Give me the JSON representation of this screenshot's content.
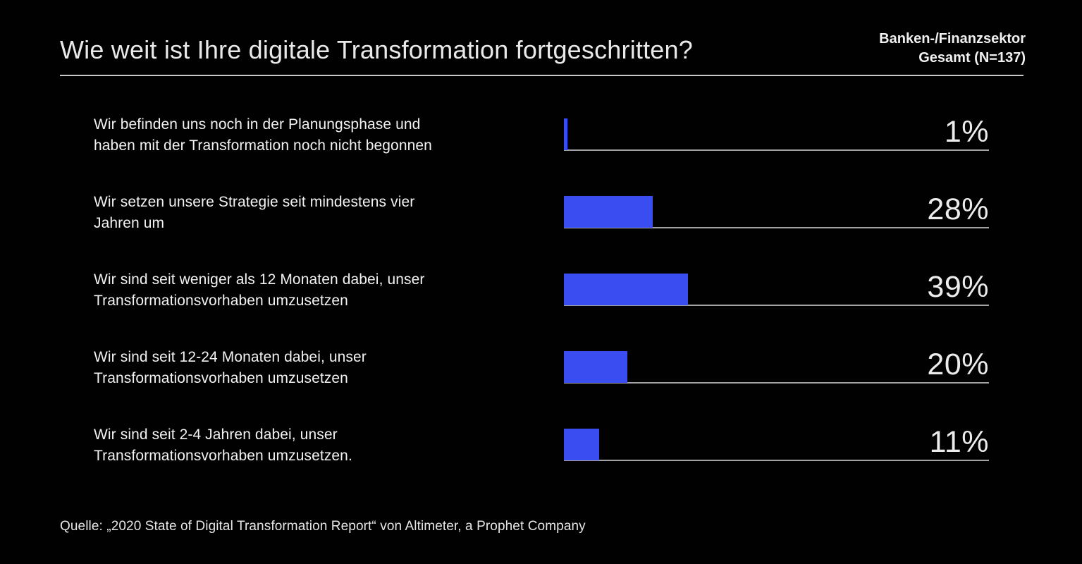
{
  "header": {
    "title": "Wie weit ist Ihre digitale Transformation fortgeschritten?",
    "segment_line1": "Banken-/Finanzsektor",
    "segment_line2": "Gesamt (N=137)"
  },
  "chart_data": {
    "type": "bar",
    "orientation": "horizontal",
    "categories": [
      "Wir befinden uns noch in der Planungsphase und\nhaben mit der Transformation noch nicht begonnen",
      "Wir setzen unsere Strategie seit mindestens vier\nJahren um",
      "Wir sind seit weniger als 12 Monaten dabei, unser\nTransformationsvorhaben umzusetzen",
      "Wir sind seit 12-24 Monaten dabei, unser\nTransformationsvorhaben umzusetzen",
      "Wir sind seit 2-4 Jahren dabei, unser\nTransformationsvorhaben umzusetzen."
    ],
    "values": [
      1,
      28,
      39,
      20,
      11
    ],
    "value_labels": [
      "1%",
      "28%",
      "39%",
      "20%",
      "11%"
    ],
    "unit": "%",
    "bar_color": "#3a4df0",
    "track_color": "#a3a3a3",
    "xlim": [
      0,
      134
    ],
    "grid": false,
    "legend": false
  },
  "footer": {
    "source": "Quelle: „2020 State of Digital Transformation Report“ von Altimeter, a Prophet Company"
  },
  "colors": {
    "background": "#010101",
    "text": "#eaeaea",
    "accent": "#3a4df0",
    "rule": "#c9c9c9"
  }
}
